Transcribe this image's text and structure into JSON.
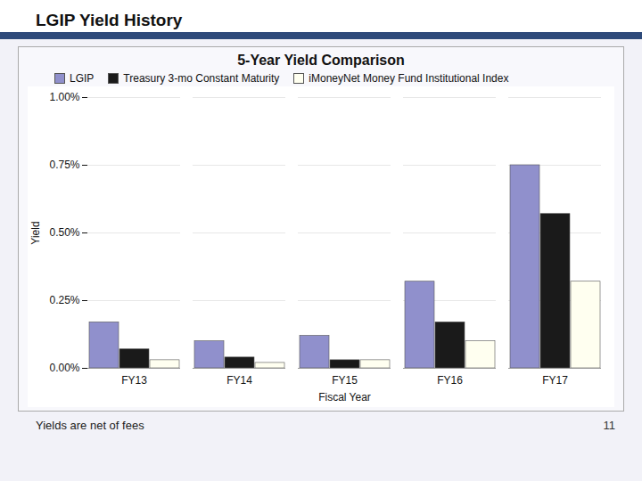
{
  "chart_data": {
    "type": "bar",
    "title": "LGIP Yield History",
    "subtitle": "5-Year Yield Comparison",
    "xlabel": "Fiscal Year",
    "ylabel": "Yield",
    "categories": [
      "FY13",
      "FY14",
      "FY15",
      "FY16",
      "FY17"
    ],
    "series": [
      {
        "name": "LGIP",
        "color": "#9090CC",
        "values": [
          0.0017,
          0.001,
          0.0012,
          0.0032,
          0.0075
        ]
      },
      {
        "name": "Treasury 3-mo Constant Maturity",
        "color": "#1a1a1a",
        "values": [
          0.0007,
          0.0004,
          0.0003,
          0.0017,
          0.0057
        ]
      },
      {
        "name": "iMoneyNet Money Fund Institutional Index",
        "color": "#FFFFF0",
        "values": [
          0.0003,
          0.0002,
          0.0003,
          0.001,
          0.0032
        ]
      }
    ],
    "ylim": [
      0,
      0.01
    ],
    "yticks": [
      {
        "value": 0.0,
        "label": "0.00%"
      },
      {
        "value": 0.0025,
        "label": "0.25%"
      },
      {
        "value": 0.005,
        "label": "0.50%"
      },
      {
        "value": 0.0075,
        "label": "0.75%"
      },
      {
        "value": 0.01,
        "label": "1.00%"
      }
    ],
    "grid": true,
    "legend": "top",
    "annotations": [
      "Yields are net of fees",
      "11"
    ]
  }
}
